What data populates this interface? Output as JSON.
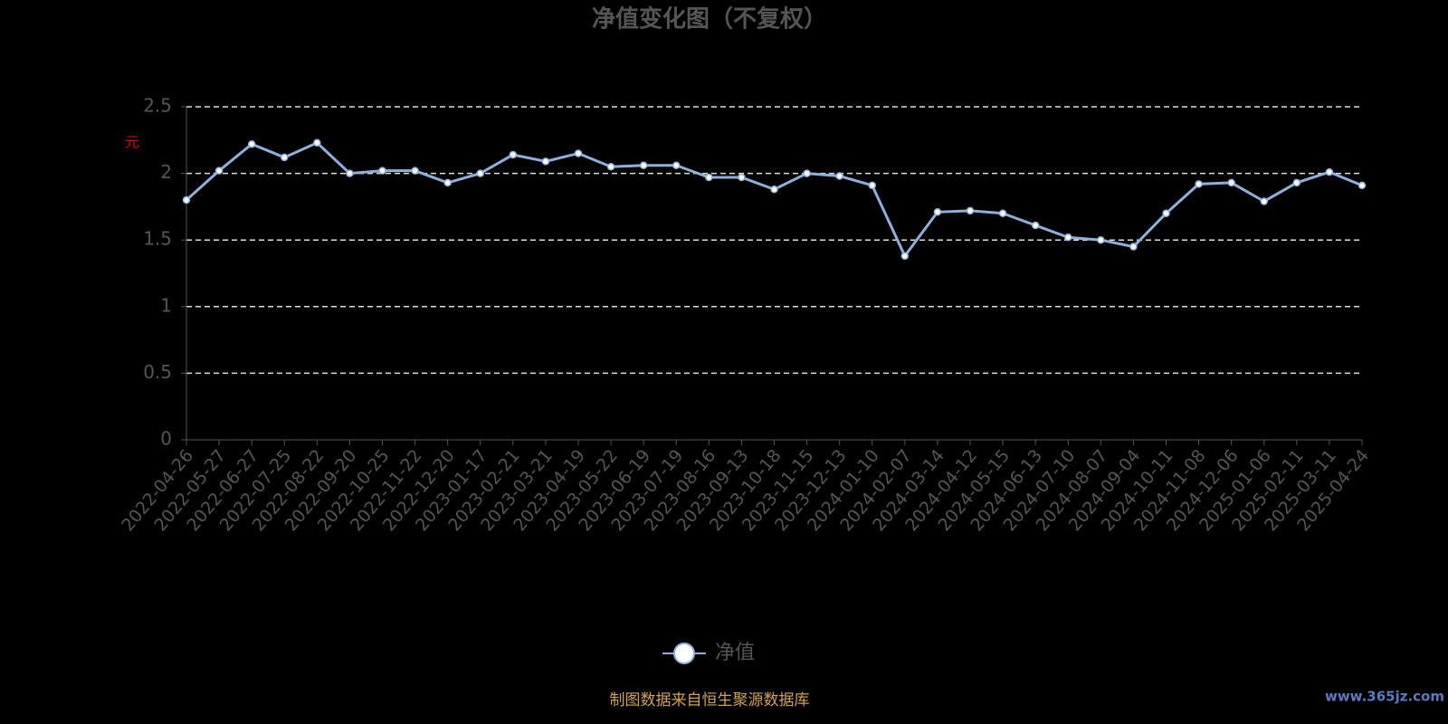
{
  "chart_data": {
    "type": "line",
    "title": "净值变化图（不复权）",
    "y_axis_label": "元",
    "categories": [
      "2022-04-26",
      "2022-05-27",
      "2022-06-27",
      "2022-07-25",
      "2022-08-22",
      "2022-09-20",
      "2022-10-25",
      "2022-11-22",
      "2022-12-20",
      "2023-01-17",
      "2023-02-21",
      "2023-03-21",
      "2023-04-19",
      "2023-05-22",
      "2023-06-19",
      "2023-07-19",
      "2023-08-16",
      "2023-09-13",
      "2023-10-18",
      "2023-11-15",
      "2023-12-13",
      "2024-01-10",
      "2024-02-07",
      "2024-03-14",
      "2024-04-12",
      "2024-05-15",
      "2024-06-13",
      "2024-07-10",
      "2024-08-07",
      "2024-09-04",
      "2024-10-11",
      "2024-11-08",
      "2024-12-06",
      "2025-01-06",
      "2025-02-11",
      "2025-03-11",
      "2025-04-24"
    ],
    "series": [
      {
        "name": "净值",
        "color": "#8fb0dc",
        "values": [
          1.8,
          2.02,
          2.22,
          2.12,
          2.23,
          2.0,
          2.02,
          2.02,
          1.93,
          2.0,
          2.14,
          2.09,
          2.15,
          2.05,
          2.06,
          2.06,
          1.97,
          1.97,
          1.88,
          2.0,
          1.98,
          1.91,
          1.38,
          1.71,
          1.72,
          1.7,
          1.61,
          1.52,
          1.5,
          1.45,
          1.7,
          1.92,
          1.93,
          1.79,
          1.93,
          2.01,
          1.91
        ]
      }
    ],
    "ylim": [
      0,
      2.5
    ],
    "yticks": [
      0,
      0.5,
      1,
      1.5,
      2,
      2.5
    ],
    "grid": true,
    "source": "制图数据来自恒生聚源数据库",
    "watermark": "www.365jz.com"
  }
}
